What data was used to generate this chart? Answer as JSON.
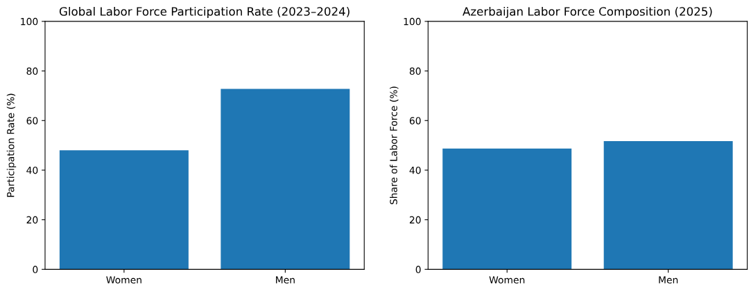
{
  "chart_data": [
    {
      "type": "bar",
      "title": "Global Labor Force Participation Rate (2023–2024)",
      "ylabel": "Participation Rate (%)",
      "categories": [
        "Women",
        "Men"
      ],
      "values": [
        48.0,
        72.8
      ],
      "color": "#1f77b4",
      "ylim": [
        0,
        100
      ],
      "yticks": [
        0,
        20,
        40,
        60,
        80,
        100
      ],
      "grid": false,
      "legend": false
    },
    {
      "type": "bar",
      "title": "Azerbaijan Labor Force Composition (2025)",
      "ylabel": "Share of Labor Force (%)",
      "categories": [
        "Women",
        "Men"
      ],
      "values": [
        48.7,
        51.7
      ],
      "color": "#1f77b4",
      "ylim": [
        0,
        100
      ],
      "yticks": [
        0,
        20,
        40,
        60,
        80,
        100
      ],
      "grid": false,
      "legend": false
    }
  ]
}
